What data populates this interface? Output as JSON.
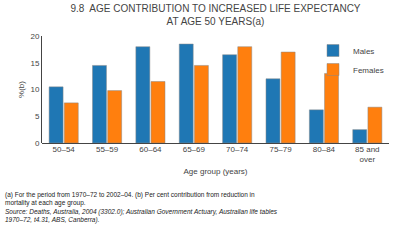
{
  "chart_data": {
    "type": "bar",
    "title": "9.8  AGE CONTRIBUTION TO INCREASED LIFE EXPECTANCY\nAT AGE 50 YEARS(a)",
    "categories": [
      "50–54",
      "55–59",
      "60–64",
      "65–69",
      "70–74",
      "75–79",
      "80–84",
      "85 and\nover"
    ],
    "series": [
      {
        "name": "Males",
        "values": [
          10.5,
          14.5,
          18.0,
          18.5,
          16.5,
          12.0,
          6.2,
          2.5
        ]
      },
      {
        "name": "Females",
        "values": [
          7.5,
          9.8,
          11.5,
          14.5,
          18.0,
          17.0,
          13.0,
          6.7
        ]
      }
    ],
    "xlabel": "Age group (years)",
    "ylabel": "%(b)",
    "ylim": [
      0,
      20
    ],
    "yticks": [
      0,
      5,
      10,
      15,
      20
    ],
    "grid": false,
    "legend": "upper right",
    "annotations": [
      "(a) For the period from 1970–72 to 2002–04. (b) Per cent contribution from reduction in",
      "mortality at each age group.",
      "Source: Deaths, Australia, 2004 (3302.0); Australian Government Actuary, Australian life tables",
      "1970–72, t4.31, ABS, Canberra)."
    ]
  }
}
